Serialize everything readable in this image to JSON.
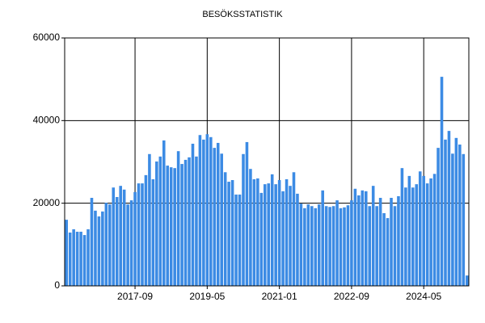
{
  "chart_data": {
    "type": "bar",
    "title": "BESÖKSSTATISTIK",
    "categories": [
      null,
      null,
      null,
      null,
      null,
      null,
      null,
      null,
      null,
      null,
      null,
      null,
      null,
      null,
      null,
      null,
      null,
      null,
      null,
      "2017-09",
      null,
      null,
      null,
      null,
      null,
      null,
      null,
      null,
      null,
      null,
      null,
      null,
      null,
      null,
      null,
      null,
      null,
      null,
      null,
      "2019-05",
      null,
      null,
      null,
      null,
      null,
      null,
      null,
      null,
      null,
      null,
      null,
      null,
      null,
      null,
      null,
      null,
      null,
      null,
      null,
      "2021-01",
      null,
      null,
      null,
      null,
      null,
      null,
      null,
      null,
      null,
      null,
      null,
      null,
      null,
      null,
      null,
      null,
      null,
      null,
      null,
      "2022-09",
      null,
      null,
      null,
      null,
      null,
      null,
      null,
      null,
      null,
      null,
      null,
      null,
      null,
      null,
      null,
      null,
      null,
      null,
      null,
      "2024-05",
      null,
      null,
      null,
      null,
      null,
      null,
      null,
      null,
      null,
      null,
      null,
      null
    ],
    "values": [
      16000,
      12900,
      13700,
      13100,
      13100,
      12300,
      13700,
      21300,
      18200,
      16800,
      18000,
      20100,
      19700,
      23800,
      21500,
      24200,
      23300,
      19700,
      20700,
      22700,
      24800,
      24800,
      26800,
      31900,
      25800,
      30100,
      31300,
      35200,
      29100,
      28700,
      28500,
      32600,
      29500,
      30500,
      31100,
      34400,
      31300,
      36500,
      35400,
      36700,
      36000,
      33400,
      34600,
      32000,
      27500,
      25200,
      25600,
      22100,
      22100,
      31900,
      34800,
      28300,
      25800,
      26000,
      22500,
      24600,
      24800,
      27000,
      24600,
      25600,
      22900,
      25800,
      24200,
      27500,
      22300,
      19900,
      18800,
      19700,
      19300,
      18800,
      19700,
      23100,
      19300,
      19100,
      19300,
      20700,
      18800,
      19000,
      19500,
      20700,
      23500,
      21900,
      23100,
      22900,
      19300,
      24200,
      19300,
      21300,
      17600,
      16400,
      21300,
      19300,
      21700,
      28500,
      23800,
      26600,
      23800,
      24600,
      27700,
      26600,
      24800,
      26000,
      27100,
      33400,
      50600,
      35400,
      37500,
      32000,
      35800,
      34200,
      31900,
      2500
    ],
    "color": "#3c8be4",
    "ylim": [
      0,
      60000
    ],
    "yticks": [
      0,
      20000,
      40000,
      60000
    ],
    "grid": true
  }
}
